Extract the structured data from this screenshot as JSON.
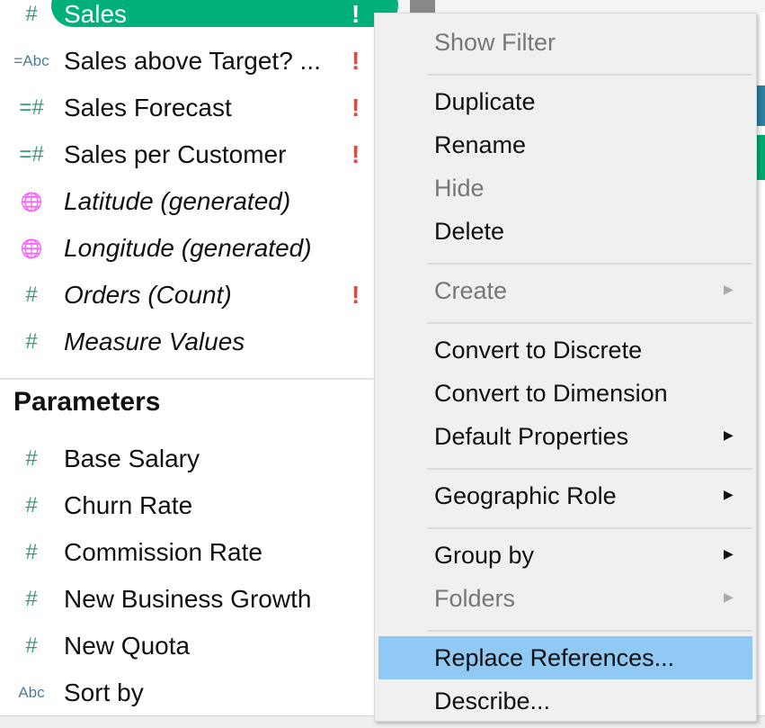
{
  "fields": [
    {
      "icon": "#",
      "icon_name": "number-icon",
      "label": "Sales",
      "italic": false,
      "warn": true,
      "selected": true
    },
    {
      "icon": "=Abc",
      "icon_name": "calculated-string-icon",
      "label": "Sales above Target? ...",
      "italic": false,
      "warn": true
    },
    {
      "icon": "=#",
      "icon_name": "calculated-number-icon",
      "label": "Sales Forecast",
      "italic": false,
      "warn": true
    },
    {
      "icon": "=#",
      "icon_name": "calculated-number-icon",
      "label": "Sales per Customer",
      "italic": false,
      "warn": true
    },
    {
      "icon": "🌐",
      "icon_name": "globe-icon",
      "label": "Latitude (generated)",
      "italic": true,
      "warn": false
    },
    {
      "icon": "🌐",
      "icon_name": "globe-icon",
      "label": "Longitude (generated)",
      "italic": true,
      "warn": false
    },
    {
      "icon": "#",
      "icon_name": "number-icon",
      "label": "Orders (Count)",
      "italic": true,
      "warn": true
    },
    {
      "icon": "#",
      "icon_name": "number-icon",
      "label": "Measure Values",
      "italic": true,
      "warn": false
    }
  ],
  "warn_glyph": "!",
  "parameters_header": "Parameters",
  "parameters": [
    {
      "icon": "#",
      "label": "Base Salary"
    },
    {
      "icon": "#",
      "label": "Churn Rate"
    },
    {
      "icon": "#",
      "label": "Commission Rate"
    },
    {
      "icon": "#",
      "label": "New Business Growth"
    },
    {
      "icon": "#",
      "label": "New Quota"
    },
    {
      "icon": "Abc",
      "label": "Sort by"
    }
  ],
  "menu": [
    {
      "label": "Show Filter",
      "disabled": true
    },
    {
      "sep": true
    },
    {
      "label": "Duplicate"
    },
    {
      "label": "Rename"
    },
    {
      "label": "Hide",
      "disabled": true
    },
    {
      "label": "Delete"
    },
    {
      "sep": true
    },
    {
      "label": "Create",
      "disabled": true,
      "submenu": true
    },
    {
      "sep": true
    },
    {
      "label": "Convert to Discrete"
    },
    {
      "label": "Convert to Dimension"
    },
    {
      "label": "Default Properties",
      "submenu": true
    },
    {
      "sep": true
    },
    {
      "label": "Geographic Role",
      "submenu": true
    },
    {
      "sep": true
    },
    {
      "label": "Group by",
      "submenu": true
    },
    {
      "label": "Folders",
      "disabled": true,
      "submenu": true
    },
    {
      "sep": true
    },
    {
      "label": "Replace References...",
      "highlighted": true
    },
    {
      "label": "Describe..."
    }
  ],
  "colors": {
    "selected": "#00b07a",
    "warn": "#d2514b",
    "highlight": "#91c9f5",
    "field_icon": "#3a9a74"
  }
}
